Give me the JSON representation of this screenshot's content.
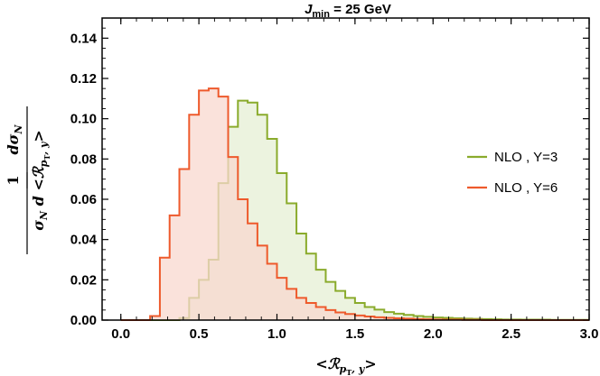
{
  "chart_data": {
    "type": "area",
    "title_base": "J",
    "title_sub": "min",
    "title_rest": " = 25 GeV",
    "xlabel_lead": "<",
    "xlabel_main": "ℛ",
    "xlabel_sub": "p",
    "xlabel_subsub": "T",
    "xlabel_sub2": ", y",
    "xlabel_tail": ">",
    "ylabel_one": "1",
    "ylabel_num": "dσ",
    "ylabel_num_sub": "N",
    "ylabel_den_sigma": "σ",
    "ylabel_den_sigma_sub": "N",
    "ylabel_den_d": "d <",
    "ylabel_den_R": "ℛ",
    "ylabel_den_R_sub": "p",
    "ylabel_den_R_subsub": "T",
    "ylabel_den_R_sub2": ", y",
    "ylabel_den_tail": ">",
    "xlim": [
      -0.12,
      3.0
    ],
    "ylim": [
      0.0,
      0.15
    ],
    "x_ticks": [
      0.0,
      0.5,
      1.0,
      1.5,
      2.0,
      2.5,
      3.0
    ],
    "x_tick_labels": [
      "0.0",
      "0.5",
      "1.0",
      "1.5",
      "2.0",
      "2.5",
      "3.0"
    ],
    "y_ticks": [
      0.0,
      0.02,
      0.04,
      0.06,
      0.08,
      0.1,
      0.12,
      0.14
    ],
    "y_tick_labels": [
      "0.00",
      "0.02",
      "0.04",
      "0.06",
      "0.08",
      "0.10",
      "0.12",
      "0.14"
    ],
    "bin_edges_start": 0.0,
    "bin_width": 0.0625,
    "series": [
      {
        "name": "NLO , Y=3",
        "stroke": "#8aab2c",
        "fill": "#e5efd4",
        "values": [
          0,
          0,
          0,
          0,
          0,
          0,
          0.001,
          0.011,
          0.02,
          0.03,
          0.068,
          0.096,
          0.109,
          0.108,
          0.102,
          0.09,
          0.073,
          0.058,
          0.043,
          0.033,
          0.025,
          0.019,
          0.0145,
          0.011,
          0.0085,
          0.0065,
          0.0052,
          0.004,
          0.0032,
          0.0026,
          0.002,
          0.0016,
          0.0013,
          0.0011,
          0.0009,
          0.0007,
          0.0006,
          0.0005,
          0.0004,
          0.0003,
          0.0003,
          0.0002,
          0.0002,
          0.0002,
          0.0001,
          0.0001,
          0.0001,
          0.0001
        ]
      },
      {
        "name": "NLO , Y=6",
        "stroke": "#ee5a2c",
        "fill": "#f8d8cf",
        "values": [
          0,
          0,
          0,
          0.002,
          0.031,
          0.052,
          0.075,
          0.102,
          0.114,
          0.115,
          0.111,
          0.081,
          0.06,
          0.048,
          0.037,
          0.028,
          0.021,
          0.0155,
          0.011,
          0.0085,
          0.0065,
          0.005,
          0.0038,
          0.003,
          0.0023,
          0.0018,
          0.0014,
          0.0011,
          0.0009,
          0.0007,
          0.0005,
          0.0004,
          0.0003,
          0.0002,
          0.0002,
          0.0001,
          0.0001,
          0,
          0,
          0,
          0,
          0,
          0,
          0,
          0,
          0,
          0,
          0
        ]
      }
    ],
    "legend_position": "right"
  }
}
